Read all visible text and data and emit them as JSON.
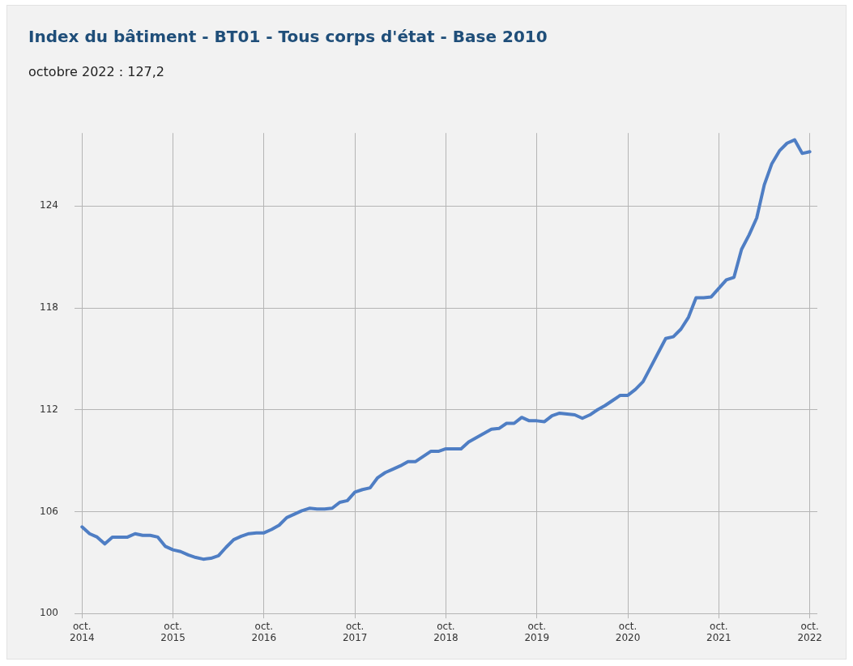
{
  "chart_data": {
    "type": "line",
    "title": "Index du bâtiment - BT01 - Tous corps d'état - Base 2010",
    "subtitle": "octobre 2022 : 127,2",
    "x": [
      "2014-10",
      "2014-11",
      "2014-12",
      "2015-01",
      "2015-02",
      "2015-03",
      "2015-04",
      "2015-05",
      "2015-06",
      "2015-07",
      "2015-08",
      "2015-09",
      "2015-10",
      "2015-11",
      "2015-12",
      "2016-01",
      "2016-02",
      "2016-03",
      "2016-04",
      "2016-05",
      "2016-06",
      "2016-07",
      "2016-08",
      "2016-09",
      "2016-10",
      "2016-11",
      "2016-12",
      "2017-01",
      "2017-02",
      "2017-03",
      "2017-04",
      "2017-05",
      "2017-06",
      "2017-07",
      "2017-08",
      "2017-09",
      "2017-10",
      "2017-11",
      "2017-12",
      "2018-01",
      "2018-02",
      "2018-03",
      "2018-04",
      "2018-05",
      "2018-06",
      "2018-07",
      "2018-08",
      "2018-09",
      "2018-10",
      "2018-11",
      "2018-12",
      "2019-01",
      "2019-02",
      "2019-03",
      "2019-04",
      "2019-05",
      "2019-06",
      "2019-07",
      "2019-08",
      "2019-09",
      "2019-10",
      "2019-11",
      "2019-12",
      "2020-01",
      "2020-02",
      "2020-03",
      "2020-04",
      "2020-05",
      "2020-06",
      "2020-07",
      "2020-08",
      "2020-09",
      "2020-10",
      "2020-11",
      "2020-12",
      "2021-01",
      "2021-02",
      "2021-03",
      "2021-04",
      "2021-05",
      "2021-06",
      "2021-07",
      "2021-08",
      "2021-09",
      "2021-10",
      "2021-11",
      "2021-12",
      "2022-01",
      "2022-02",
      "2022-03",
      "2022-04",
      "2022-05",
      "2022-06",
      "2022-07",
      "2022-08",
      "2022-09",
      "2022-10"
    ],
    "series": [
      {
        "color": "#4f7ec4",
        "values": [
          105.1,
          104.7,
          104.5,
          104.1,
          104.5,
          104.5,
          104.5,
          104.7,
          104.6,
          104.6,
          104.5,
          103.95,
          103.75,
          103.65,
          103.45,
          103.3,
          103.2,
          103.25,
          103.4,
          103.9,
          104.35,
          104.55,
          104.7,
          104.75,
          104.75,
          104.95,
          105.2,
          105.65,
          105.85,
          106.05,
          106.2,
          106.15,
          106.15,
          106.2,
          106.55,
          106.65,
          107.15,
          107.3,
          107.4,
          108.0,
          108.3,
          108.5,
          108.7,
          108.95,
          108.95,
          109.25,
          109.55,
          109.55,
          109.7,
          109.7,
          109.7,
          110.1,
          110.35,
          110.6,
          110.85,
          110.9,
          111.2,
          111.2,
          111.55,
          111.35,
          111.35,
          111.3,
          111.65,
          111.8,
          111.75,
          111.7,
          111.5,
          111.7,
          112.0,
          112.25,
          112.55,
          112.85,
          112.85,
          113.2,
          113.65,
          114.5,
          115.35,
          116.2,
          116.3,
          116.75,
          117.45,
          118.6,
          118.6,
          118.65,
          119.15,
          119.65,
          119.8,
          121.45,
          122.3,
          123.3,
          125.25,
          126.5,
          127.25,
          127.7,
          127.9,
          127.1,
          127.2
        ]
      }
    ],
    "xlim": [
      "2014-09",
      "2022-11"
    ],
    "xticks": [
      {
        "value": "2014-10",
        "label": "oct.\n2014"
      },
      {
        "value": "2015-10",
        "label": "oct.\n2015"
      },
      {
        "value": "2016-10",
        "label": "oct.\n2016"
      },
      {
        "value": "2017-10",
        "label": "oct.\n2017"
      },
      {
        "value": "2018-10",
        "label": "oct.\n2018"
      },
      {
        "value": "2019-10",
        "label": "oct.\n2019"
      },
      {
        "value": "2020-10",
        "label": "oct.\n2020"
      },
      {
        "value": "2021-10",
        "label": "oct.\n2021"
      },
      {
        "value": "2022-10",
        "label": "oct.\n2022"
      }
    ],
    "ylim": [
      100,
      128.3
    ],
    "yticks": [
      100,
      106,
      112,
      118,
      124
    ],
    "grid": true,
    "legend": false,
    "marker": "none",
    "line_style": "solid"
  }
}
